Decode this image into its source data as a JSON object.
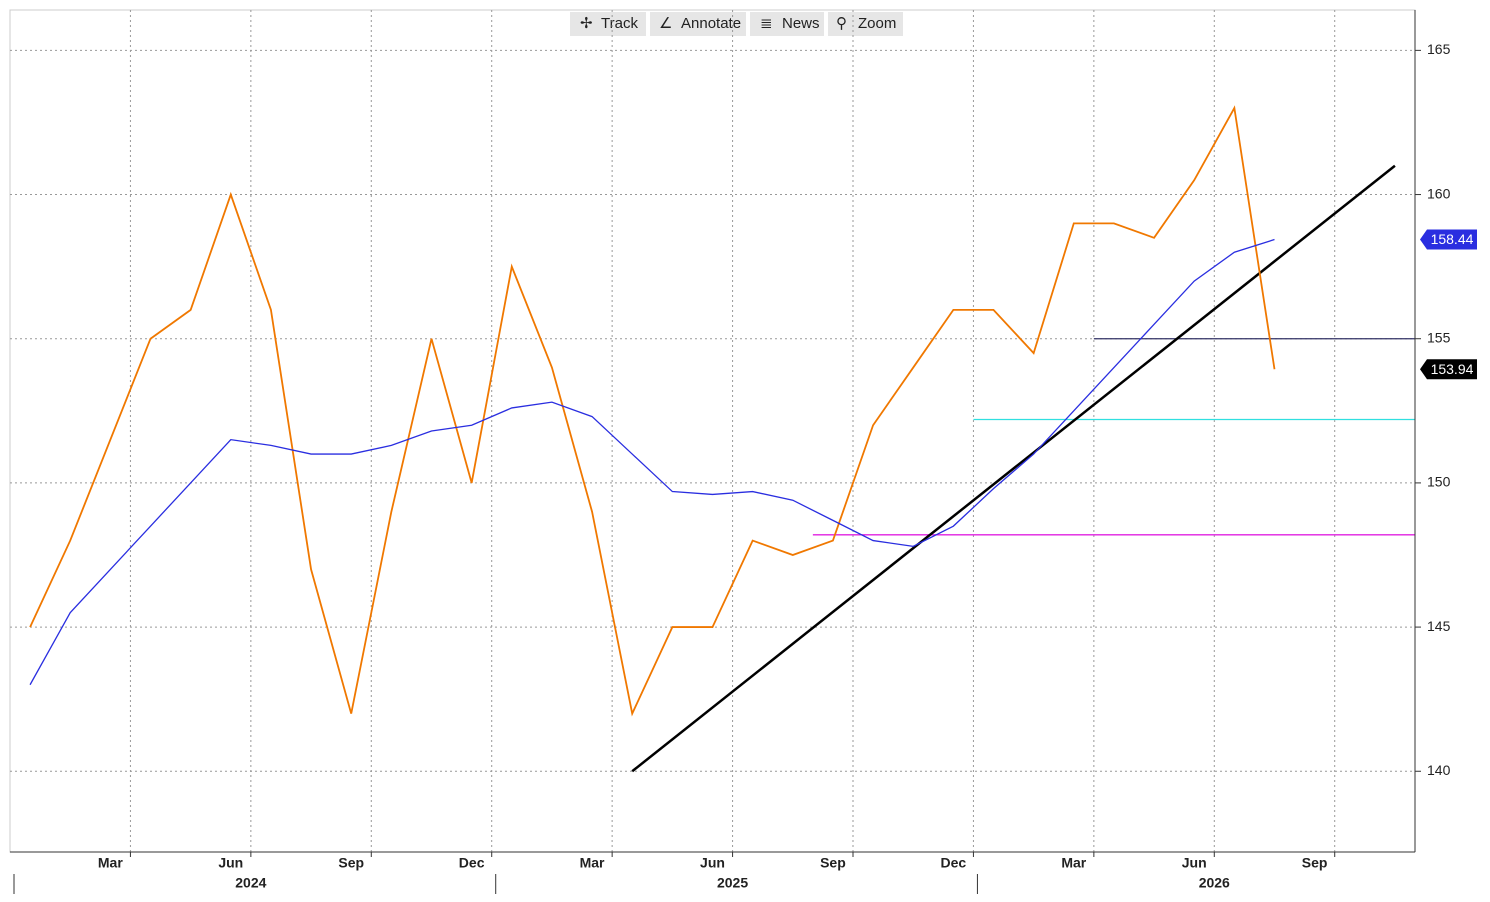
{
  "toolbar": [
    "Track",
    "Annotate",
    "News",
    "Zoom"
  ],
  "chart_data": {
    "type": "line",
    "categories": [
      "2024-01",
      "2024-02",
      "2024-03",
      "2024-04",
      "2024-05",
      "2024-06",
      "2024-07",
      "2024-08",
      "2024-09",
      "2024-10",
      "2024-11",
      "2024-12",
      "2025-01",
      "2025-02",
      "2025-03",
      "2025-04",
      "2025-05",
      "2025-06",
      "2025-07",
      "2025-08",
      "2025-09",
      "2025-10",
      "2025-11",
      "2025-12",
      "2026-01",
      "2026-02",
      "2026-03",
      "2026-04",
      "2026-05",
      "2026-06",
      "2026-07",
      "2026-08"
    ],
    "series": [
      {
        "color": "#f07800",
        "values": [
          145,
          148,
          151.5,
          155,
          156,
          160,
          156,
          147,
          142,
          149,
          155,
          150,
          157.5,
          154,
          149,
          142,
          145,
          145,
          148,
          147.5,
          148,
          152,
          154,
          156,
          156,
          154.5,
          159,
          159,
          158.5,
          160.5,
          163,
          153.94
        ]
      },
      {
        "color": "#2a2ee0",
        "values": [
          143,
          145.5,
          147,
          148.5,
          150,
          151.5,
          151.3,
          151,
          151,
          151.3,
          151.8,
          152,
          152.6,
          152.8,
          152.3,
          151,
          149.7,
          149.6,
          149.7,
          149.4,
          148.7,
          148,
          147.8,
          148.5,
          149.8,
          151,
          152.5,
          154,
          155.5,
          157,
          158,
          158.44
        ]
      }
    ],
    "hlines": [
      {
        "value": 155,
        "from": "2026-04",
        "color": "#333366"
      },
      {
        "value": 152.2,
        "from": "2026-01",
        "color": "#30e0e0"
      },
      {
        "value": 148.2,
        "from": "2025-09",
        "color": "#e020e0"
      }
    ],
    "trendline": {
      "x": [
        "2025-04",
        "2026-11"
      ],
      "values": [
        140,
        161
      ],
      "color": "#000000"
    },
    "xlim": [
      "2024-01",
      "2026-11"
    ],
    "xticks": [
      {
        "value": "2024-03",
        "label": "Mar"
      },
      {
        "value": "2024-06",
        "label": "Jun"
      },
      {
        "value": "2024-09",
        "label": "Sep"
      },
      {
        "value": "2024-12",
        "label": "Dec"
      },
      {
        "value": "2025-03",
        "label": "Mar"
      },
      {
        "value": "2025-06",
        "label": "Jun"
      },
      {
        "value": "2025-09",
        "label": "Sep"
      },
      {
        "value": "2025-12",
        "label": "Dec"
      },
      {
        "value": "2026-03",
        "label": "Mar"
      },
      {
        "value": "2026-06",
        "label": "Jun"
      },
      {
        "value": "2026-09",
        "label": "Sep"
      }
    ],
    "xticks_major": [
      "2024",
      "2025",
      "2026"
    ],
    "ylim": [
      137.2,
      166.4
    ],
    "yticks": [
      140,
      145,
      150,
      155,
      160,
      165
    ],
    "grid": true
  }
}
